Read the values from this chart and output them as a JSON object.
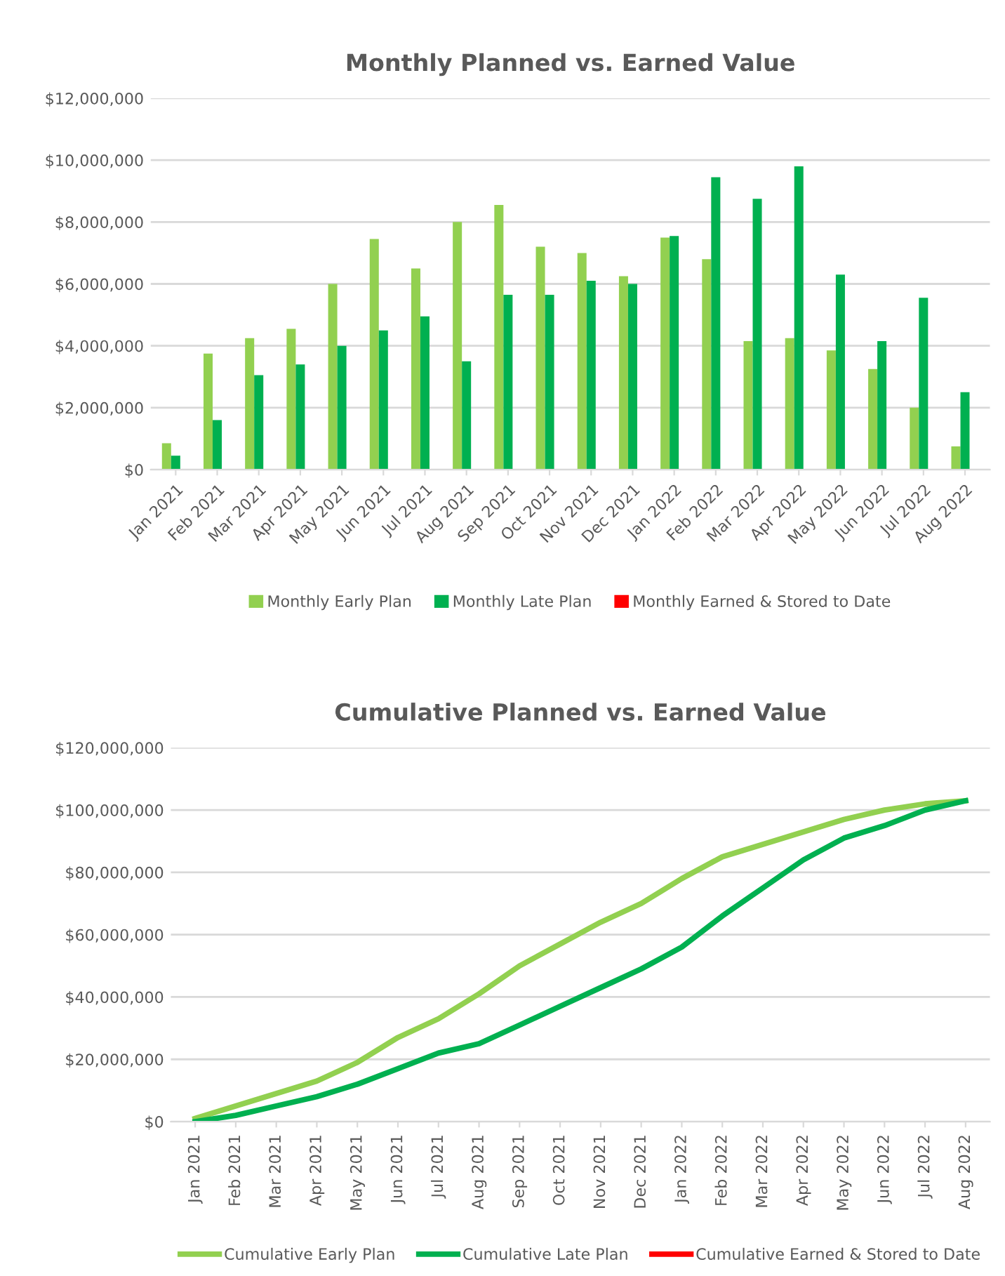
{
  "chart_data": [
    {
      "type": "bar",
      "title": "Monthly Planned vs. Earned Value",
      "categories": [
        "Jan 2021",
        "Feb 2021",
        "Mar 2021",
        "Apr 2021",
        "May 2021",
        "Jun 2021",
        "Jul 2021",
        "Aug 2021",
        "Sep 2021",
        "Oct 2021",
        "Nov 2021",
        "Dec 2021",
        "Jan 2022",
        "Feb 2022",
        "Mar 2022",
        "Apr 2022",
        "May 2022",
        "Jun 2022",
        "Jul 2022",
        "Aug 2022"
      ],
      "series": [
        {
          "name": "Monthly Early Plan",
          "color": "#92d050",
          "values": [
            850000,
            3750000,
            4250000,
            4550000,
            6000000,
            7450000,
            6500000,
            8000000,
            8550000,
            7200000,
            7000000,
            6250000,
            7500000,
            6800000,
            4150000,
            4250000,
            3850000,
            3250000,
            2000000,
            750000
          ]
        },
        {
          "name": "Monthly Late Plan",
          "color": "#00b050",
          "values": [
            450000,
            1600000,
            3050000,
            3400000,
            4000000,
            4500000,
            4950000,
            3500000,
            5650000,
            5650000,
            6100000,
            6000000,
            7550000,
            9450000,
            8750000,
            9800000,
            6300000,
            4150000,
            5550000,
            2500000
          ]
        },
        {
          "name": "Monthly Earned & Stored to Date",
          "color": "#ff0000",
          "values": [
            null,
            null,
            null,
            null,
            null,
            null,
            null,
            null,
            null,
            null,
            null,
            null,
            null,
            null,
            null,
            null,
            null,
            null,
            null,
            null
          ]
        }
      ],
      "ylim": [
        0,
        12000000
      ],
      "yticks": [
        {
          "value": 0,
          "label": "$0"
        },
        {
          "value": 2000000,
          "label": "$2,000,000"
        },
        {
          "value": 4000000,
          "label": "$4,000,000"
        },
        {
          "value": 6000000,
          "label": "$6,000,000"
        },
        {
          "value": 8000000,
          "label": "$8,000,000"
        },
        {
          "value": 10000000,
          "label": "$10,000,000"
        },
        {
          "value": 12000000,
          "label": "$12,000,000"
        }
      ],
      "grid": "y",
      "legend": "bottom"
    },
    {
      "type": "line",
      "title": "Cumulative Planned vs. Earned Value",
      "categories": [
        "Jan 2021",
        "Feb 2021",
        "Mar 2021",
        "Apr 2021",
        "May 2021",
        "Jun 2021",
        "Jul 2021",
        "Aug 2021",
        "Sep 2021",
        "Oct 2021",
        "Nov 2021",
        "Dec 2021",
        "Jan 2022",
        "Feb 2022",
        "Mar 2022",
        "Apr 2022",
        "May 2022",
        "Jun 2022",
        "Jul 2022",
        "Aug 2022"
      ],
      "series": [
        {
          "name": "Cumulative Early Plan",
          "color": "#92d050",
          "values": [
            1000000,
            5000000,
            9000000,
            13000000,
            19000000,
            27000000,
            33000000,
            41000000,
            50000000,
            57000000,
            64000000,
            70000000,
            78000000,
            85000000,
            89000000,
            93000000,
            97000000,
            100000000,
            102000000,
            103000000
          ]
        },
        {
          "name": "Cumulative Late Plan",
          "color": "#00b050",
          "values": [
            0,
            2000000,
            5000000,
            8000000,
            12000000,
            17000000,
            22000000,
            25000000,
            31000000,
            37000000,
            43000000,
            49000000,
            56000000,
            66000000,
            75000000,
            84000000,
            91000000,
            95000000,
            100000000,
            103000000
          ]
        },
        {
          "name": "Cumulative Earned & Stored to Date",
          "color": "#ff0000",
          "values": [
            null,
            null,
            null,
            null,
            null,
            null,
            null,
            null,
            null,
            null,
            null,
            null,
            null,
            null,
            null,
            null,
            null,
            null,
            null,
            null
          ]
        }
      ],
      "ylim": [
        0,
        120000000
      ],
      "yticks": [
        {
          "value": 0,
          "label": "$0"
        },
        {
          "value": 20000000,
          "label": "$20,000,000"
        },
        {
          "value": 40000000,
          "label": "$40,000,000"
        },
        {
          "value": 60000000,
          "label": "$60,000,000"
        },
        {
          "value": 80000000,
          "label": "$80,000,000"
        },
        {
          "value": 100000000,
          "label": "$100,000,000"
        },
        {
          "value": 120000000,
          "label": "$120,000,000"
        }
      ],
      "grid": "y",
      "legend": "bottom",
      "marker": "none",
      "line_style": "solid"
    }
  ]
}
